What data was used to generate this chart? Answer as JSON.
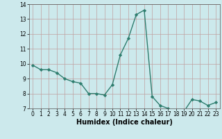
{
  "x": [
    0,
    1,
    2,
    3,
    4,
    5,
    6,
    7,
    8,
    9,
    10,
    11,
    12,
    13,
    14,
    15,
    16,
    17,
    18,
    19,
    20,
    21,
    22,
    23
  ],
  "y": [
    9.9,
    9.6,
    9.6,
    9.4,
    9.0,
    8.8,
    8.7,
    8.0,
    8.0,
    7.9,
    8.6,
    10.6,
    11.7,
    13.3,
    13.6,
    7.8,
    7.2,
    7.0,
    6.7,
    6.8,
    7.6,
    7.5,
    7.2,
    7.4
  ],
  "line_color": "#2e7d6e",
  "marker": "D",
  "marker_size": 2.2,
  "bg_color": "#cce9ec",
  "grid_color": "#c0a0a0",
  "xlabel": "Humidex (Indice chaleur)",
  "ylim": [
    7,
    14
  ],
  "xlim_min": -0.5,
  "xlim_max": 23.5,
  "yticks": [
    7,
    8,
    9,
    10,
    11,
    12,
    13,
    14
  ],
  "xticks": [
    0,
    1,
    2,
    3,
    4,
    5,
    6,
    7,
    8,
    9,
    10,
    11,
    12,
    13,
    14,
    15,
    16,
    17,
    18,
    19,
    20,
    21,
    22,
    23
  ],
  "tick_fontsize": 5.5,
  "xlabel_fontsize": 7.0,
  "linewidth": 1.0
}
